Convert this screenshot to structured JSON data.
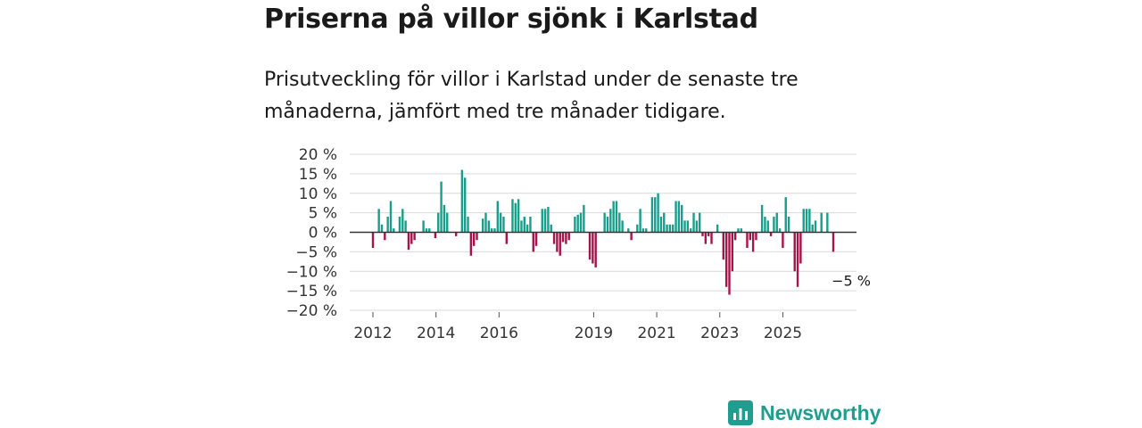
{
  "title": "Priserna på villor sjönk i Karlstad",
  "subtitle": "Prisutveckling för villor i Karlstad under de senaste tre månaderna, jämfört med tre månader tidigare.",
  "brand": {
    "name": "Newsworthy",
    "icon": "newsworthy-bar-chart-icon"
  },
  "colors": {
    "positive": "#1a9e8c",
    "negative": "#a3154a",
    "grid": "#d9d9d9",
    "zero": "#333333"
  },
  "chart_data": {
    "type": "bar",
    "unit": "%",
    "ylim": [
      -20,
      20
    ],
    "yticks": [
      20,
      15,
      10,
      5,
      0,
      -5,
      -10,
      -15,
      -20
    ],
    "ytick_labels": [
      "20 %",
      "15 %",
      "10 %",
      "5 %",
      "0 %",
      "−5 %",
      "−10 %",
      "−15 %",
      "−20 %"
    ],
    "x_start_year": 2012,
    "x_end_year": 2026.6,
    "xticks": [
      2012,
      2014,
      2016,
      2019,
      2021,
      2023,
      2025
    ],
    "annotation": {
      "label": "−5 %",
      "value": -5
    },
    "values": [
      -4,
      0,
      6,
      2,
      -2,
      4,
      8,
      1,
      0,
      4,
      6,
      3,
      -4.5,
      -3,
      -2,
      0,
      0,
      3,
      1,
      1,
      0,
      -1.5,
      5,
      13,
      7,
      5,
      0,
      0,
      -1,
      0,
      16,
      14,
      4,
      -6,
      -3.5,
      -2,
      0,
      3.5,
      5,
      3,
      1,
      1,
      8,
      5,
      4,
      -3,
      0,
      8.5,
      7.5,
      8.5,
      3,
      4,
      2,
      4,
      -5,
      -3.5,
      0,
      6,
      6,
      6.5,
      2,
      -3,
      -5,
      -6,
      -2.5,
      -3,
      -2,
      0,
      4,
      4.5,
      5,
      7,
      0,
      -7,
      -8,
      -9,
      0,
      0,
      5,
      4,
      6,
      8,
      8,
      5,
      3,
      0,
      1,
      -2,
      0,
      2,
      6,
      1,
      1,
      0,
      9,
      9,
      10,
      4,
      5,
      2,
      2,
      2,
      8,
      8,
      7,
      3,
      3,
      1,
      5,
      3,
      5,
      -1,
      -3,
      -1,
      -3,
      0,
      2,
      0,
      -7,
      -14,
      -16,
      -10,
      -2,
      1,
      1,
      0,
      -4,
      -2,
      -5,
      -2,
      0,
      7,
      4,
      3,
      -1,
      4,
      5,
      1,
      -4,
      9,
      4,
      0,
      -10,
      -14,
      -8,
      6,
      6,
      6,
      2,
      3,
      0,
      5,
      0,
      5,
      0,
      -5
    ]
  }
}
